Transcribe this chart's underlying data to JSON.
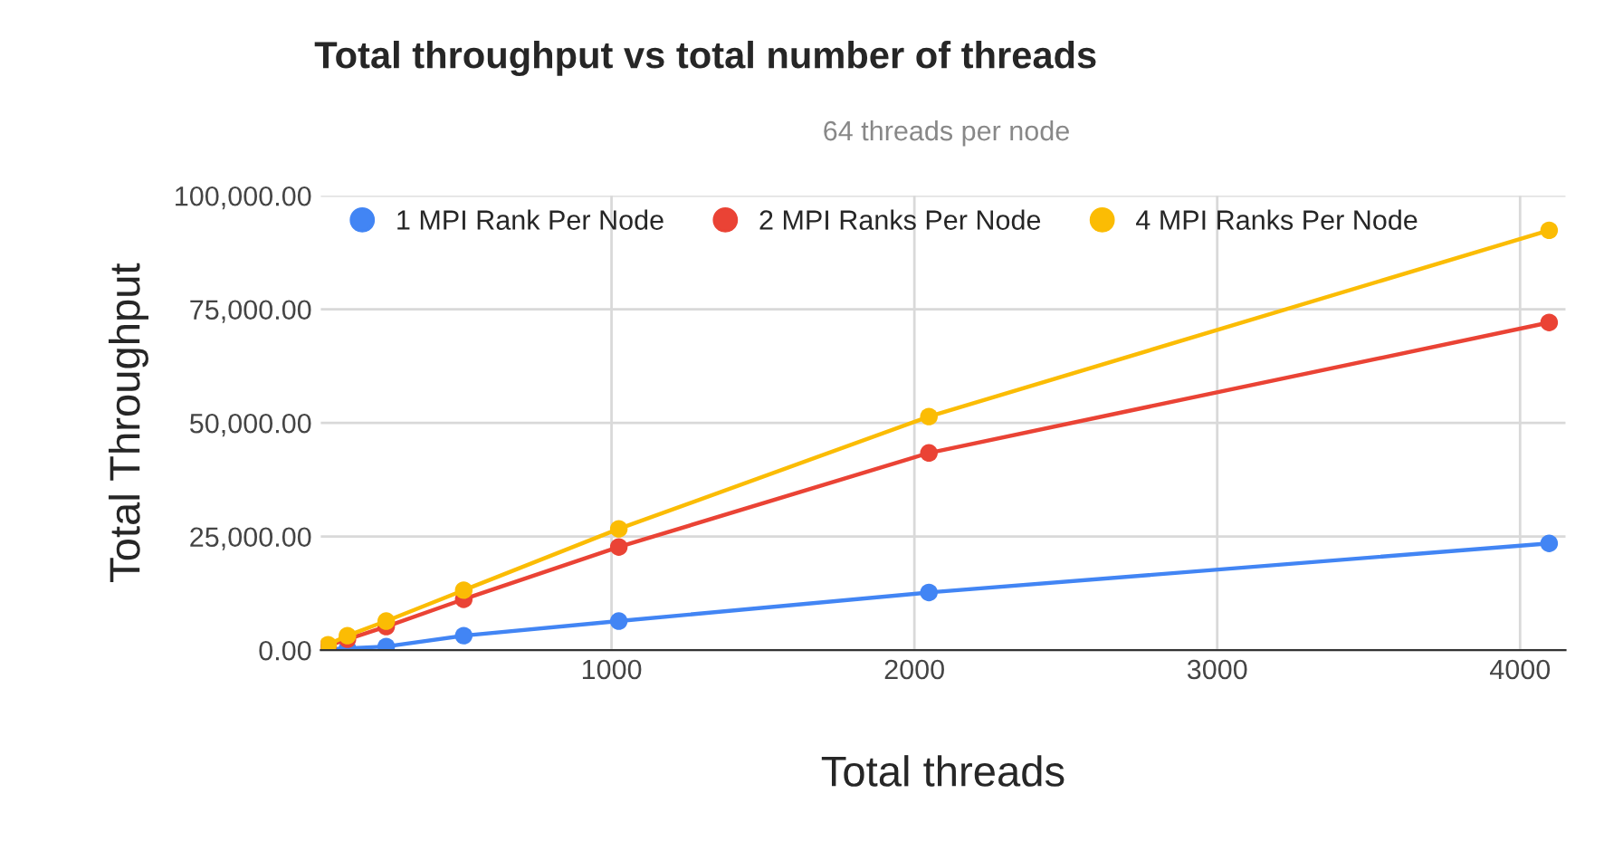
{
  "chart_data": {
    "type": "line",
    "title": "Total throughput vs total number of threads",
    "subtitle": "64 threads per node",
    "xlabel": "Total threads",
    "ylabel": "Total Throughput",
    "x": [
      64,
      128,
      256,
      512,
      1024,
      2048,
      4096
    ],
    "series": [
      {
        "name": "1 MPI Rank Per Node",
        "color": "#4285f4",
        "values": [
          200,
          400,
          800,
          3200,
          6400,
          12700,
          23500
        ]
      },
      {
        "name": "2 MPI Ranks Per Node",
        "color": "#ea4335",
        "values": [
          1000,
          2400,
          5200,
          11200,
          22700,
          43400,
          72100
        ]
      },
      {
        "name": "4 MPI Ranks Per Node",
        "color": "#fbbc04",
        "values": [
          1200,
          3200,
          6400,
          13200,
          26700,
          51400,
          92400
        ]
      }
    ],
    "xlim": [
      40,
      4150
    ],
    "xticks": [
      1000,
      2000,
      3000,
      4000
    ],
    "ylim": [
      0,
      100000
    ],
    "yticks": [
      {
        "value": 0,
        "label": "0.00"
      },
      {
        "value": 25000,
        "label": "25,000.00"
      },
      {
        "value": 50000,
        "label": "50,000.00"
      },
      {
        "value": 75000,
        "label": "75,000.00"
      },
      {
        "value": 100000,
        "label": "100,000.00"
      }
    ],
    "grid": true,
    "legend": "top left",
    "marker": "circle",
    "line_style": "solid"
  }
}
